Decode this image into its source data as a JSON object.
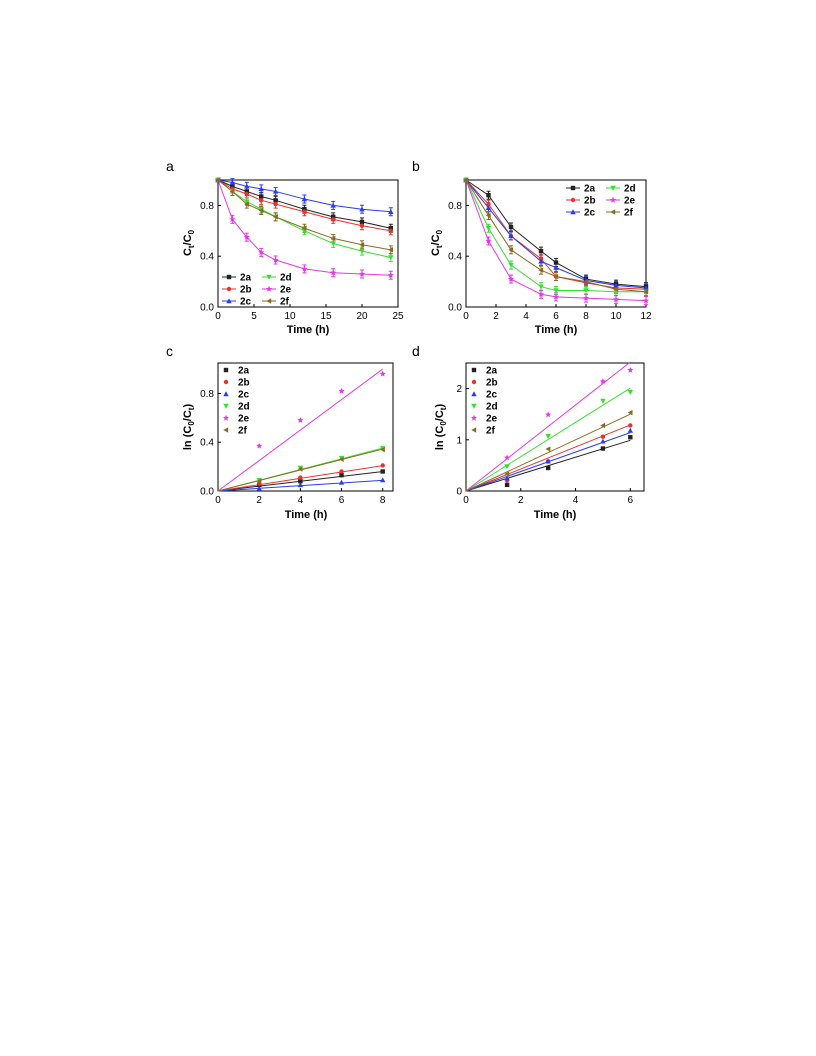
{
  "panel_labels": [
    "a",
    "b",
    "c",
    "d"
  ],
  "series_names": [
    "2a",
    "2b",
    "2c",
    "2d",
    "2e",
    "2f"
  ],
  "series_colors": {
    "2a": "#222222",
    "2b": "#e8322e",
    "2c": "#2a3cf0",
    "2d": "#35e12f",
    "2e": "#e636e6",
    "2f": "#8a6a22"
  },
  "chart_data": [
    {
      "panel": "a",
      "type": "line",
      "xlabel": "Time (h)",
      "ylabel": "C",
      "ylabel_sub": "t",
      "ylabel_mid": "/C",
      "ylabel_sub2": "0",
      "ylabel_pre": "",
      "ylabel_post": "",
      "xlim": [
        0,
        25
      ],
      "ylim": [
        0,
        1.0
      ],
      "xticks": [
        0,
        5,
        10,
        15,
        20,
        25
      ],
      "yticks": [
        0.0,
        0.4,
        0.8
      ],
      "ytick_labels": [
        "0.0",
        "0.4",
        "0.8"
      ],
      "legend_position": "bottom-left",
      "legend_columns": 2,
      "x": [
        0,
        2,
        4,
        6,
        8,
        12,
        16,
        20,
        24
      ],
      "series": [
        {
          "name": "2a",
          "values": [
            1.0,
            0.95,
            0.91,
            0.87,
            0.84,
            0.77,
            0.71,
            0.67,
            0.62
          ]
        },
        {
          "name": "2b",
          "values": [
            1.0,
            0.93,
            0.89,
            0.84,
            0.81,
            0.75,
            0.69,
            0.64,
            0.6
          ]
        },
        {
          "name": "2c",
          "values": [
            1.0,
            0.98,
            0.95,
            0.93,
            0.91,
            0.85,
            0.8,
            0.77,
            0.75
          ]
        },
        {
          "name": "2d",
          "values": [
            1.0,
            0.91,
            0.83,
            0.77,
            0.71,
            0.6,
            0.5,
            0.44,
            0.39
          ]
        },
        {
          "name": "2e",
          "values": [
            1.0,
            0.69,
            0.55,
            0.43,
            0.37,
            0.3,
            0.27,
            0.26,
            0.25
          ]
        },
        {
          "name": "2f",
          "values": [
            1.0,
            0.91,
            0.81,
            0.76,
            0.71,
            0.62,
            0.54,
            0.49,
            0.45
          ]
        }
      ],
      "has_error_bars": true,
      "fit_lines": false
    },
    {
      "panel": "b",
      "type": "line",
      "xlabel": "Time (h)",
      "ylabel": "C",
      "ylabel_sub": "t",
      "ylabel_mid": "/C",
      "ylabel_sub2": "0",
      "ylabel_pre": "",
      "ylabel_post": "",
      "xlim": [
        0,
        12
      ],
      "ylim": [
        0,
        1.0
      ],
      "xticks": [
        0,
        2,
        4,
        6,
        8,
        10,
        12
      ],
      "yticks": [
        0.0,
        0.4,
        0.8
      ],
      "ytick_labels": [
        "0.0",
        "0.4",
        "0.8"
      ],
      "legend_position": "top-right",
      "legend_columns": 2,
      "x": [
        0,
        1.5,
        3,
        5,
        6,
        8,
        10,
        12
      ],
      "series": [
        {
          "name": "2a",
          "values": [
            1.0,
            0.88,
            0.63,
            0.44,
            0.35,
            0.22,
            0.18,
            0.16
          ]
        },
        {
          "name": "2b",
          "values": [
            1.0,
            0.81,
            0.56,
            0.38,
            0.24,
            0.19,
            0.15,
            0.14
          ]
        },
        {
          "name": "2c",
          "values": [
            1.0,
            0.78,
            0.56,
            0.36,
            0.31,
            0.21,
            0.17,
            0.15
          ]
        },
        {
          "name": "2d",
          "values": [
            1.0,
            0.62,
            0.33,
            0.16,
            0.13,
            0.13,
            0.12,
            0.12
          ]
        },
        {
          "name": "2e",
          "values": [
            1.0,
            0.52,
            0.22,
            0.1,
            0.08,
            0.07,
            0.06,
            0.05
          ]
        },
        {
          "name": "2f",
          "values": [
            1.0,
            0.72,
            0.45,
            0.29,
            0.24,
            0.2,
            0.14,
            0.12
          ]
        }
      ],
      "has_error_bars": true,
      "fit_lines": false
    },
    {
      "panel": "c",
      "type": "scatter",
      "xlabel": "Time (h)",
      "ylabel_pre": "ln (C",
      "ylabel_sub": "0",
      "ylabel_mid": "/C",
      "ylabel_sub2": "t",
      "ylabel_post": ")",
      "xlim": [
        0,
        8.5
      ],
      "ylim": [
        0,
        1.05
      ],
      "xticks": [
        0,
        2,
        4,
        6,
        8
      ],
      "yticks": [
        0.0,
        0.4,
        0.8
      ],
      "ytick_labels": [
        "0.0",
        "0.4",
        "0.8"
      ],
      "legend_position": "top-left",
      "legend_columns": 1,
      "x": [
        0,
        2,
        4,
        6,
        8
      ],
      "series": [
        {
          "name": "2a",
          "values": [
            0,
            0.05,
            0.08,
            0.13,
            0.16
          ],
          "slope": 0.02
        },
        {
          "name": "2b",
          "values": [
            0,
            0.06,
            0.11,
            0.16,
            0.21
          ],
          "slope": 0.026
        },
        {
          "name": "2c",
          "values": [
            0,
            0.02,
            0.05,
            0.07,
            0.09
          ],
          "slope": 0.011
        },
        {
          "name": "2d",
          "values": [
            0,
            0.09,
            0.19,
            0.27,
            0.35
          ],
          "slope": 0.044
        },
        {
          "name": "2e",
          "values": [
            0,
            0.37,
            0.58,
            0.82,
            0.96
          ],
          "slope": 0.125
        },
        {
          "name": "2f",
          "values": [
            0,
            0.08,
            0.18,
            0.26,
            0.34
          ],
          "slope": 0.043
        }
      ],
      "has_error_bars": false,
      "fit_lines": true
    },
    {
      "panel": "d",
      "type": "scatter",
      "xlabel": "Time (h)",
      "ylabel_pre": "ln (C",
      "ylabel_sub": "0",
      "ylabel_mid": "/C",
      "ylabel_sub2": "t",
      "ylabel_post": ")",
      "xlim": [
        0,
        6.5
      ],
      "ylim": [
        0,
        2.5
      ],
      "xticks": [
        0,
        2,
        4,
        6
      ],
      "yticks": [
        0,
        1,
        2
      ],
      "ytick_labels": [
        "0",
        "1",
        "2"
      ],
      "legend_position": "top-left",
      "legend_columns": 1,
      "x": [
        0,
        1.5,
        3,
        5,
        6
      ],
      "series": [
        {
          "name": "2a",
          "values": [
            0,
            0.12,
            0.45,
            0.83,
            1.05
          ],
          "slope": 0.165
        },
        {
          "name": "2b",
          "values": [
            0,
            0.21,
            0.58,
            1.06,
            1.28
          ],
          "slope": 0.215
        },
        {
          "name": "2c",
          "values": [
            0,
            0.25,
            0.58,
            0.97,
            1.18
          ],
          "slope": 0.19
        },
        {
          "name": "2d",
          "values": [
            0,
            0.48,
            1.07,
            1.76,
            1.93
          ],
          "slope": 0.335
        },
        {
          "name": "2e",
          "values": [
            0,
            0.65,
            1.49,
            2.14,
            2.36
          ],
          "slope": 0.42
        },
        {
          "name": "2f",
          "values": [
            0,
            0.33,
            0.82,
            1.28,
            1.53
          ],
          "slope": 0.25
        }
      ],
      "has_error_bars": false,
      "fit_lines": true
    }
  ]
}
